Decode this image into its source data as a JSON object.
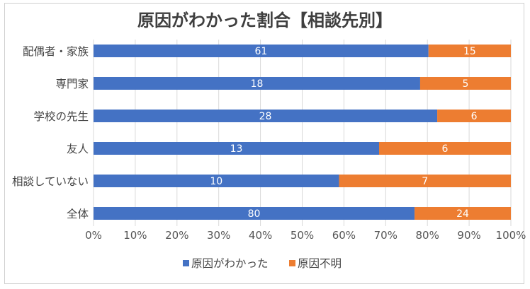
{
  "chart_data": {
    "type": "bar",
    "orientation": "horizontal",
    "stacked": "percent",
    "title": "原因がわかった割合【相談先別】",
    "categories": [
      "配偶者・家族",
      "専門家",
      "学校の先生",
      "友人",
      "相談していない",
      "全体"
    ],
    "series": [
      {
        "name": "原因がわかった",
        "color": "#4472C4",
        "values": [
          61,
          18,
          28,
          13,
          10,
          80
        ]
      },
      {
        "name": "原因不明",
        "color": "#ED7D31",
        "values": [
          15,
          5,
          6,
          6,
          7,
          24
        ]
      }
    ],
    "x_ticks": [
      "0%",
      "10%",
      "20%",
      "30%",
      "40%",
      "50%",
      "60%",
      "70%",
      "80%",
      "90%",
      "100%"
    ],
    "xlim": [
      0,
      100
    ],
    "grid": true,
    "legend": "bottom"
  }
}
